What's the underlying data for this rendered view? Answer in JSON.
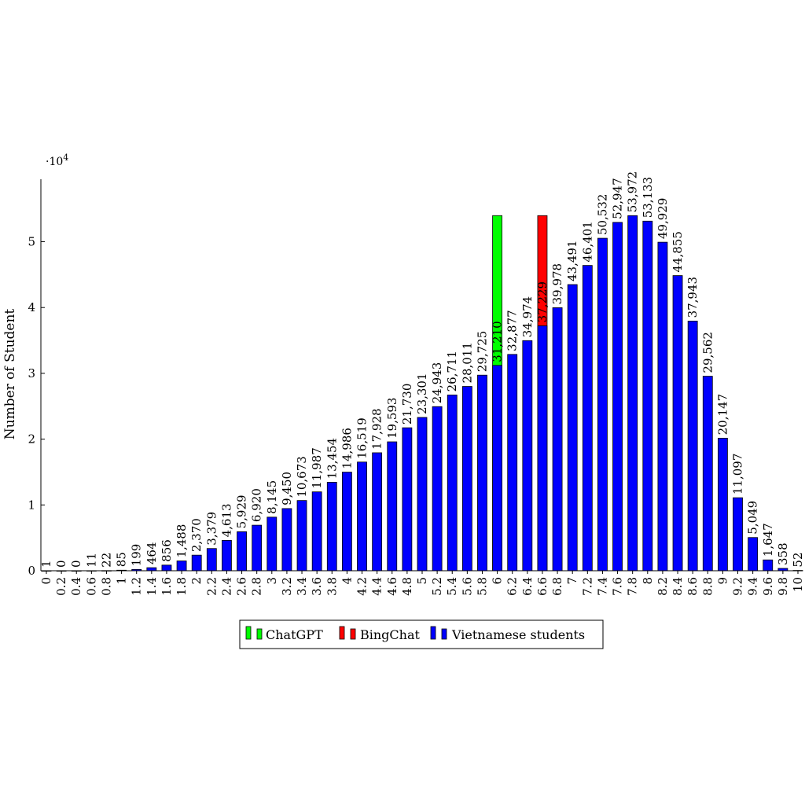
{
  "chart_data": {
    "type": "bar",
    "ylabel": "Number of Student",
    "xlabel": "",
    "y_multiplier": "·10",
    "y_multiplier_exp": "4",
    "ylim": [
      0,
      59500
    ],
    "y_ticks": [
      0,
      1,
      2,
      3,
      4,
      5
    ],
    "y_tick_scale": 10000,
    "grid": false,
    "legend_position": "bottom-center",
    "categories": [
      "0",
      "0.2",
      "0.4",
      "0.6",
      "0.8",
      "1",
      "1.2",
      "1.4",
      "1.6",
      "1.8",
      "2",
      "2.2",
      "2.4",
      "2.6",
      "2.8",
      "3",
      "3.2",
      "3.4",
      "3.6",
      "3.8",
      "4",
      "4.2",
      "4.4",
      "4.6",
      "4.8",
      "5",
      "5.2",
      "5.4",
      "5.6",
      "5.8",
      "6",
      "6.2",
      "6.4",
      "6.6",
      "6.8",
      "7",
      "7.2",
      "7.4",
      "7.6",
      "7.8",
      "8",
      "8.2",
      "8.4",
      "8.6",
      "8.8",
      "9",
      "9.2",
      "9.4",
      "9.6",
      "9.8",
      "10"
    ],
    "series": [
      {
        "name": "ChatGPT",
        "color": "#00ff00",
        "points": [
          {
            "category": "6",
            "value": 53972
          }
        ]
      },
      {
        "name": "BingChat",
        "color": "#ff0000",
        "points": [
          {
            "category": "6.6",
            "value": 53972
          }
        ]
      },
      {
        "name": "Vietnamese students",
        "color": "#0000ff",
        "values": [
          1,
          0,
          0,
          11,
          22,
          85,
          199,
          464,
          856,
          1488,
          2370,
          3379,
          4613,
          5929,
          6920,
          8145,
          9450,
          10673,
          11987,
          13454,
          14986,
          16519,
          17928,
          19593,
          21730,
          23301,
          24943,
          26711,
          28011,
          29725,
          31210,
          32877,
          34974,
          37229,
          39978,
          43491,
          46401,
          50532,
          52947,
          53972,
          53133,
          49929,
          44855,
          37943,
          29562,
          20147,
          11097,
          5049,
          1647,
          358,
          52
        ]
      }
    ],
    "data_labels": [
      "1",
      "0",
      "0",
      "11",
      "22",
      "85",
      "199",
      "464",
      "856",
      "1,488",
      "2,370",
      "3,379",
      "4,613",
      "5,929",
      "6,920",
      "8,145",
      "9,450",
      "10,673",
      "11,987",
      "13,454",
      "14,986",
      "16,519",
      "17,928",
      "19,593",
      "21,730",
      "23,301",
      "24,943",
      "26,711",
      "28,011",
      "29,725",
      "31,210",
      "32,877",
      "34,974",
      "37,229",
      "39,978",
      "43,491",
      "46,401",
      "50,532",
      "52,947",
      "53,972",
      "53,133",
      "49,929",
      "44,855",
      "37,943",
      "29,562",
      "20,147",
      "11,097",
      "5,049",
      "1,647",
      "358",
      "52"
    ]
  }
}
